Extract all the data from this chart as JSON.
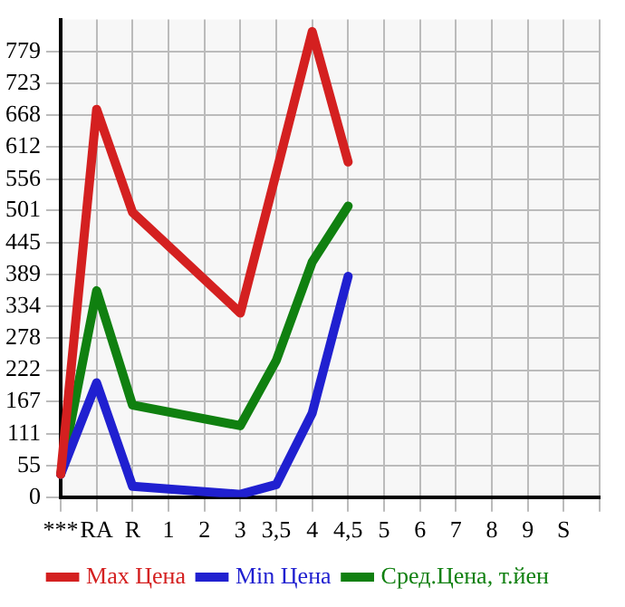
{
  "chart_data": {
    "type": "line",
    "categories": [
      "***",
      "RA",
      "R",
      "1",
      "2",
      "3",
      "3,5",
      "4",
      "4,5",
      "5",
      "6",
      "7",
      "8",
      "9",
      "S",
      null
    ],
    "series": [
      {
        "name": "Max Цена",
        "color": "#d42020",
        "values": [
          40,
          678,
          498,
          null,
          null,
          322,
          567,
          814,
          586,
          null,
          null,
          null,
          null,
          null,
          null,
          null
        ]
      },
      {
        "name": "Min Цена",
        "color": "#2020d0",
        "values": [
          40,
          200,
          19,
          null,
          null,
          5,
          22,
          147,
          386,
          null,
          null,
          null,
          null,
          null,
          null,
          null
        ]
      },
      {
        "name": "Сред.Цена, т.йен",
        "color": "#108010",
        "values": [
          40,
          361,
          161,
          null,
          null,
          125,
          239,
          411,
          509,
          null,
          null,
          null,
          null,
          null,
          null,
          null
        ]
      }
    ],
    "ylim": [
      0,
      835
    ],
    "yticks": [
      0,
      55,
      111,
      167,
      222,
      278,
      334,
      389,
      445,
      501,
      556,
      612,
      668,
      723,
      779
    ],
    "grid": true,
    "legend": "bottom",
    "marker": "none",
    "line_style": "solid"
  }
}
